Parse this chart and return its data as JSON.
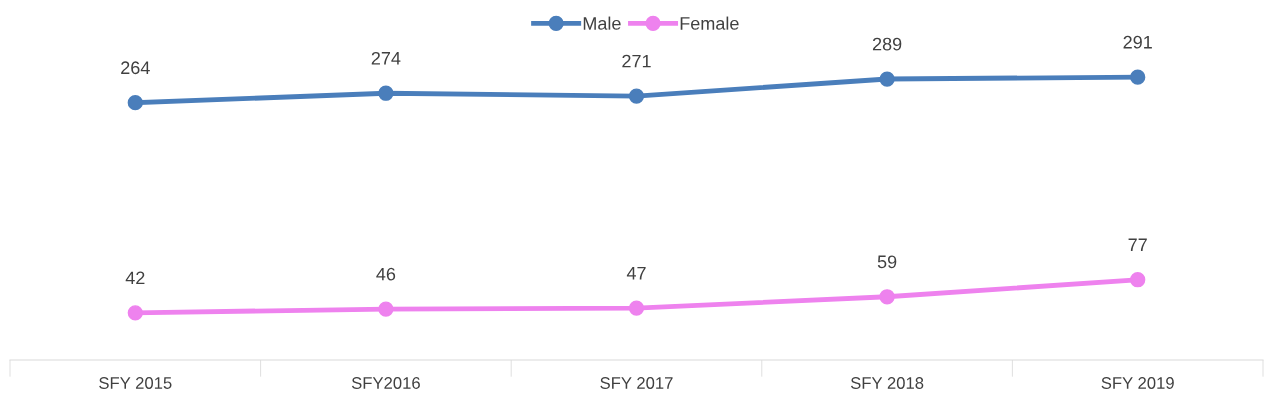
{
  "chart_data": {
    "type": "line",
    "categories": [
      "SFY 2015",
      "SFY2016",
      "SFY 2017",
      "SFY 2018",
      "SFY 2019"
    ],
    "series": [
      {
        "name": "Male",
        "color": "#4a7ebb",
        "values": [
          264,
          274,
          271,
          289,
          291
        ]
      },
      {
        "name": "Female",
        "color": "#ee82ee",
        "values": [
          42,
          46,
          47,
          59,
          77
        ]
      }
    ],
    "tick_labels": "x",
    "data_labels": true,
    "legend": "top",
    "marker": "circle",
    "line_style": "solid",
    "grid": false
  }
}
